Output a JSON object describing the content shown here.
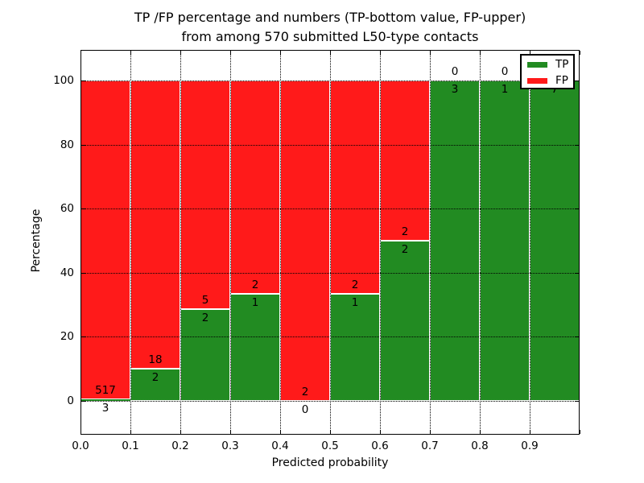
{
  "title": {
    "line1": "TP /FP percentage and numbers (TP-bottom value, FP-upper)",
    "line2": "from among 570 submitted L50-type contacts"
  },
  "axes": {
    "xlabel": "Predicted probability",
    "ylabel": "Percentage",
    "x_tick_labels": [
      "0.0",
      "0.1",
      "0.2",
      "0.3",
      "0.4",
      "0.5",
      "0.6",
      "0.7",
      "0.8",
      "0.9"
    ],
    "y_tick_labels": [
      "0",
      "20",
      "40",
      "60",
      "80",
      "100"
    ],
    "y_tick_values": [
      0,
      20,
      40,
      60,
      80,
      100
    ],
    "xlim": [
      0.0,
      1.0
    ],
    "ylim": [
      -10,
      110
    ],
    "grid": "dotted"
  },
  "legend": {
    "position": "upper right",
    "items": [
      {
        "label": "TP",
        "color": "#228b22"
      },
      {
        "label": "FP",
        "color": "#ff1a1a"
      }
    ]
  },
  "colors": {
    "tp": "#228b22",
    "fp": "#ff1a1a",
    "bar_edge": "#ffffff",
    "background": "#ffffff",
    "text": "#000000"
  },
  "chart_data": {
    "type": "bar",
    "stacked": true,
    "title": "TP /FP percentage and numbers (TP-bottom value, FP-upper) from among 570 submitted L50-type contacts",
    "xlabel": "Predicted probability",
    "ylabel": "Percentage",
    "total_contacts": 570,
    "bin_width": 0.1,
    "categories": [
      "0.0-0.1",
      "0.1-0.2",
      "0.2-0.3",
      "0.3-0.4",
      "0.4-0.5",
      "0.5-0.6",
      "0.6-0.7",
      "0.7-0.8",
      "0.8-0.9",
      "0.9-1.0"
    ],
    "series": [
      {
        "name": "TP",
        "values": [
          3,
          2,
          2,
          1,
          0,
          1,
          2,
          3,
          1,
          7
        ]
      },
      {
        "name": "FP",
        "values": [
          517,
          18,
          5,
          2,
          2,
          2,
          2,
          0,
          0,
          0
        ]
      }
    ],
    "tp_percent": [
      0.58,
      10.0,
      28.57,
      33.33,
      0.0,
      33.33,
      50.0,
      100.0,
      100.0,
      100.0
    ]
  }
}
